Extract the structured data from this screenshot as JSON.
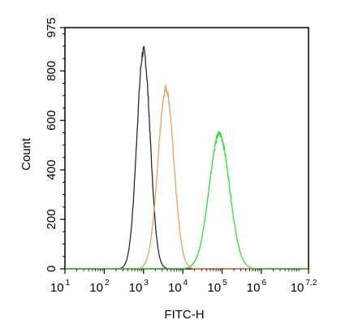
{
  "chart_data": {
    "type": "line",
    "xlabel": "FITC-H",
    "ylabel": "Count",
    "x_scale": "log10",
    "xlim": [
      1,
      7.2
    ],
    "ylim": [
      0,
      975
    ],
    "x_ticks": [
      {
        "base": "10",
        "exp": "1"
      },
      {
        "base": "10",
        "exp": "2"
      },
      {
        "base": "10",
        "exp": "3"
      },
      {
        "base": "10",
        "exp": "4"
      },
      {
        "base": "10",
        "exp": "5"
      },
      {
        "base": "10",
        "exp": "6"
      },
      {
        "base": "10",
        "exp": "7.2"
      }
    ],
    "y_ticks": [
      "0",
      "200",
      "400",
      "600",
      "800",
      "975"
    ],
    "grid": false,
    "series": [
      {
        "color": "#2b2b2b",
        "peak_log10": 3.0,
        "peak_count": 880,
        "width_log10": 0.17
      },
      {
        "color": "#f0a060",
        "peak_log10": 3.57,
        "peak_count": 730,
        "width_log10": 0.2
      },
      {
        "color": "#33dd33",
        "peak_log10": 4.93,
        "peak_count": 545,
        "width_log10": 0.26
      }
    ]
  }
}
